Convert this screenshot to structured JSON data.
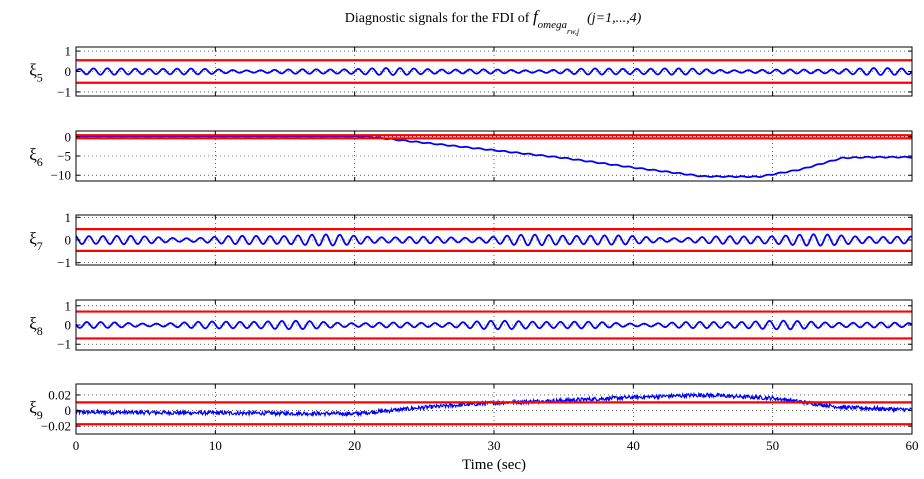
{
  "colors": {
    "signal": "#0000ff",
    "threshold": "#ff0000",
    "axis": "#000000",
    "grid": "#000000"
  },
  "chart_data": {
    "type": "line",
    "title": {
      "prefix": "Diagnostic signals for the FDI of ",
      "symbol": "f",
      "subscript": "omega",
      "subsubscript": "rw,j",
      "suffix": "(j=1,...,4)"
    },
    "xlabel": "Time (sec)",
    "xlim": [
      0,
      60
    ],
    "xticks": [
      "0",
      "10",
      "20",
      "30",
      "40",
      "50",
      "60"
    ],
    "grid": true,
    "panels": [
      {
        "ylabel": "ξ",
        "ylabel_sub": "5",
        "ylim": [
          -1.2,
          1.2
        ],
        "yticks": [
          {
            "v": 1,
            "t": "1"
          },
          {
            "v": 0,
            "t": "0"
          },
          {
            "v": -1,
            "t": "−1"
          }
        ],
        "thresholds": [
          0.55,
          -0.55
        ],
        "series": {
          "shape": "oscillation",
          "amplitude": 0.15,
          "freq_hz": 1.0
        }
      },
      {
        "ylabel": "ξ",
        "ylabel_sub": "6",
        "ylim": [
          -11.5,
          1.5
        ],
        "yticks": [
          {
            "v": 0,
            "t": "0"
          },
          {
            "v": -5,
            "t": "−5"
          },
          {
            "v": -10,
            "t": "−10"
          }
        ],
        "thresholds": [
          0.4,
          -0.4
        ],
        "series": {
          "shape": "piecewise",
          "points": [
            [
              0,
              0.1
            ],
            [
              20,
              0.1
            ],
            [
              21,
              0
            ],
            [
              30,
              -3.5
            ],
            [
              35,
              -5.5
            ],
            [
              40,
              -8
            ],
            [
              45,
              -10.3
            ],
            [
              49,
              -10.4
            ],
            [
              52,
              -8.5
            ],
            [
              55,
              -5.5
            ],
            [
              57,
              -5.3
            ],
            [
              60,
              -5.3
            ]
          ]
        }
      },
      {
        "ylabel": "ξ",
        "ylabel_sub": "7",
        "ylim": [
          -1.1,
          1.1
        ],
        "yticks": [
          {
            "v": 1,
            "t": "1"
          },
          {
            "v": 0,
            "t": "0"
          },
          {
            "v": -1,
            "t": "−1"
          }
        ],
        "thresholds": [
          0.48,
          -0.48
        ],
        "series": {
          "shape": "oscillation",
          "amplitude": 0.22,
          "freq_hz": 1.0
        }
      },
      {
        "ylabel": "ξ",
        "ylabel_sub": "8",
        "ylim": [
          -1.3,
          1.3
        ],
        "yticks": [
          {
            "v": 1,
            "t": "1"
          },
          {
            "v": 0,
            "t": "0"
          },
          {
            "v": -1,
            "t": "−1"
          }
        ],
        "thresholds": [
          0.7,
          -0.7
        ],
        "series": {
          "shape": "oscillation",
          "amplitude": 0.2,
          "freq_hz": 1.0
        }
      },
      {
        "ylabel": "ξ",
        "ylabel_sub": "9",
        "ylim": [
          -0.03,
          0.034
        ],
        "yticks": [
          {
            "v": 0.02,
            "t": "0.02"
          },
          {
            "v": 0,
            "t": "0"
          },
          {
            "v": -0.02,
            "t": "−0.02"
          }
        ],
        "thresholds": [
          0.0105,
          -0.0175
        ],
        "series": {
          "shape": "noisy",
          "noise": 0.0025,
          "points": [
            [
              0,
              -0.002
            ],
            [
              10,
              -0.003
            ],
            [
              20,
              -0.004
            ],
            [
              25,
              0.004
            ],
            [
              30,
              0.01
            ],
            [
              35,
              0.013
            ],
            [
              40,
              0.017
            ],
            [
              45,
              0.02
            ],
            [
              50,
              0.016
            ],
            [
              55,
              0.004
            ],
            [
              60,
              0.001
            ]
          ]
        }
      }
    ]
  }
}
